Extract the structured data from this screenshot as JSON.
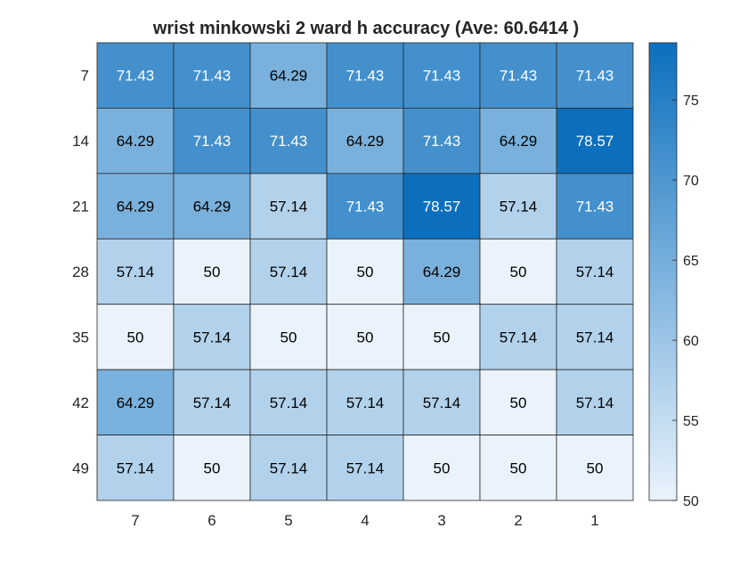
{
  "chart_data": {
    "type": "heatmap",
    "title": "wrist minkowski 2 ward h accuracy (Ave:  60.6414 )",
    "x_labels": [
      "7",
      "6",
      "5",
      "4",
      "3",
      "2",
      "1"
    ],
    "y_labels": [
      "7",
      "14",
      "21",
      "28",
      "35",
      "42",
      "49"
    ],
    "values": [
      [
        71.43,
        71.43,
        64.29,
        71.43,
        71.43,
        71.43,
        71.43
      ],
      [
        64.29,
        71.43,
        71.43,
        64.29,
        71.43,
        64.29,
        78.57
      ],
      [
        64.29,
        64.29,
        57.14,
        71.43,
        78.57,
        57.14,
        71.43
      ],
      [
        57.14,
        50,
        57.14,
        50,
        64.29,
        50,
        57.14
      ],
      [
        50,
        57.14,
        50,
        50,
        50,
        57.14,
        57.14
      ],
      [
        64.29,
        57.14,
        57.14,
        57.14,
        57.14,
        50,
        57.14
      ],
      [
        57.14,
        50,
        57.14,
        57.14,
        50,
        50,
        50
      ]
    ],
    "color_range": [
      50,
      78.57
    ],
    "color_low": "#eaf3fc",
    "color_high": "#0b6fbd",
    "colorbar": {
      "ticks": [
        50,
        55,
        60,
        65,
        70,
        75
      ],
      "placement": "right"
    }
  }
}
